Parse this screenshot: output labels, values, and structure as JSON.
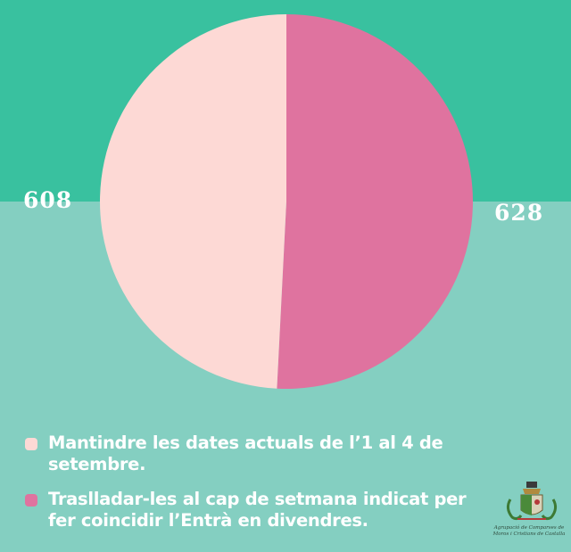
{
  "chart_data": {
    "type": "pie",
    "series": [
      {
        "label": "Mantindre les dates actuals de l’1 al 4 de setembre.",
        "value": 608,
        "color": "#fdd9d5"
      },
      {
        "label": "Traslladar-les al cap de setmana indicat per fer coincidir l’Entrà en divendres.",
        "value": 628,
        "color": "#df739f"
      }
    ],
    "data_labels": [
      "608",
      "628"
    ],
    "legend_placement": "bottom-left"
  },
  "colors": {
    "background_top": "#39c19f",
    "background_bottom": "#84cfc1",
    "text": "#ffffff"
  },
  "logo": {
    "icon": "coat-of-arms-icon",
    "text": "Agrupació de Comparses de Moros i Cristians de Castalla"
  }
}
